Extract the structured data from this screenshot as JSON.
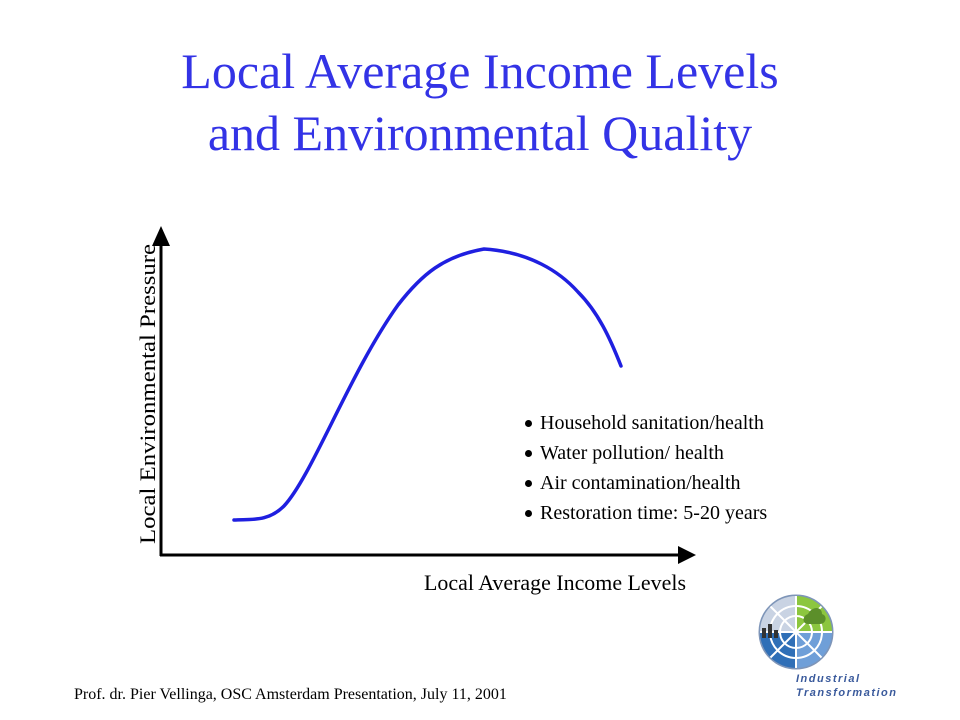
{
  "slide": {
    "title_line1": "Local Average Income Levels",
    "title_line2": "and Environmental Quality"
  },
  "diagram": {
    "y_axis_label": "Local Environmental Pressure",
    "x_axis_label": "Local Average Income Levels",
    "curve": "rise-peak-fall",
    "curve_color": "#1f1fe0"
  },
  "bullets": [
    "Household sanitation/health",
    "Water pollution/ health",
    "Air contamination/health",
    "Restoration time: 5-20 years"
  ],
  "footer": {
    "credit": "Prof. dr. Pier Vellinga, OSC Amsterdam Presentation, July 11, 2001"
  },
  "logo": {
    "line1": "Industrial",
    "line2": "Transformation",
    "icon": "industrial-transformation-globe-icon"
  },
  "colors": {
    "title": "#3333e6",
    "curve": "#1f1fe0",
    "logo_text": "#3a5a9c"
  }
}
